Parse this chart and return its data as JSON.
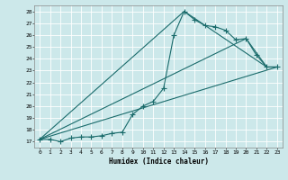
{
  "xlabel": "Humidex (Indice chaleur)",
  "bg_color": "#cce8ea",
  "grid_color": "#b0d4d8",
  "line_color": "#1a6b6b",
  "markersize": 2.0,
  "xlim": [
    -0.5,
    23.5
  ],
  "ylim": [
    16.5,
    28.5
  ],
  "xticks": [
    0,
    1,
    2,
    3,
    4,
    5,
    6,
    7,
    8,
    9,
    10,
    11,
    12,
    13,
    14,
    15,
    16,
    17,
    18,
    19,
    20,
    21,
    22,
    23
  ],
  "yticks": [
    17,
    18,
    19,
    20,
    21,
    22,
    23,
    24,
    25,
    26,
    27,
    28
  ],
  "line1_x": [
    0,
    1,
    2,
    3,
    4,
    5,
    6,
    7,
    8,
    9,
    10,
    11,
    12,
    13,
    14,
    15,
    16,
    17,
    18,
    19,
    20,
    21,
    22,
    23
  ],
  "line1_y": [
    17.2,
    17.2,
    17.0,
    17.3,
    17.4,
    17.4,
    17.5,
    17.7,
    17.8,
    19.3,
    20.0,
    20.4,
    21.5,
    26.0,
    28.0,
    27.3,
    26.8,
    26.7,
    26.4,
    25.6,
    25.7,
    24.3,
    23.3,
    23.3
  ],
  "line2_x": [
    0,
    14,
    22,
    23
  ],
  "line2_y": [
    17.2,
    28.0,
    23.3,
    23.3
  ],
  "line3_x": [
    0,
    20,
    22,
    23
  ],
  "line3_y": [
    17.2,
    25.7,
    23.3,
    23.3
  ],
  "line4_x": [
    0,
    23
  ],
  "line4_y": [
    17.2,
    23.3
  ]
}
